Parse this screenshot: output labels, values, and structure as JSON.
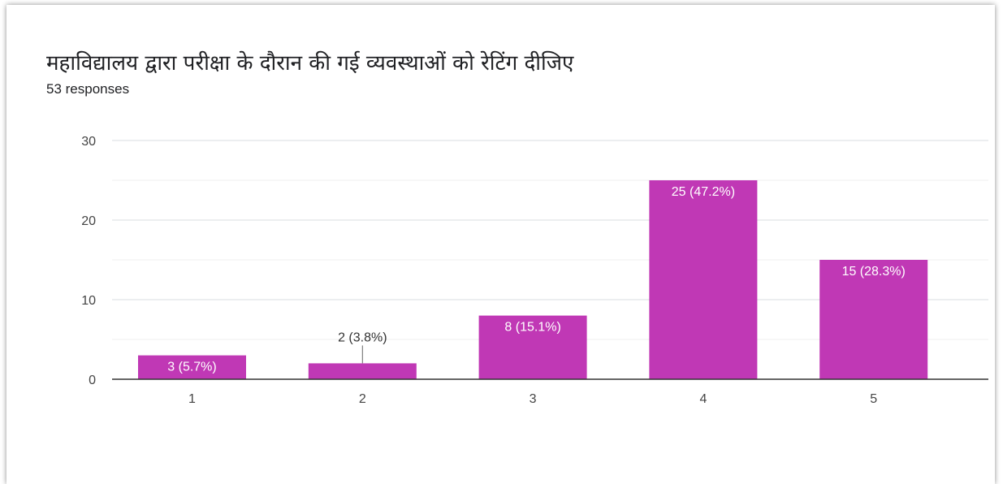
{
  "chart_data": {
    "type": "bar",
    "title": "महाविद्यालय द्वारा परीक्षा के दौरान की गई व्यवस्थाओं को रेटिंग दीजिए",
    "subtitle": "53 responses",
    "categories": [
      "1",
      "2",
      "3",
      "4",
      "5"
    ],
    "values": [
      3,
      2,
      8,
      25,
      15
    ],
    "data_labels": [
      "3 (5.7%)",
      "2 (3.8%)",
      "8 (15.1%)",
      "25 (47.2%)",
      "15 (28.3%)"
    ],
    "xlabel": "",
    "ylabel": "",
    "ylim": [
      0,
      30
    ],
    "yticks": [
      0,
      10,
      20,
      30
    ],
    "grid": true,
    "bar_color": "#c038b5"
  }
}
